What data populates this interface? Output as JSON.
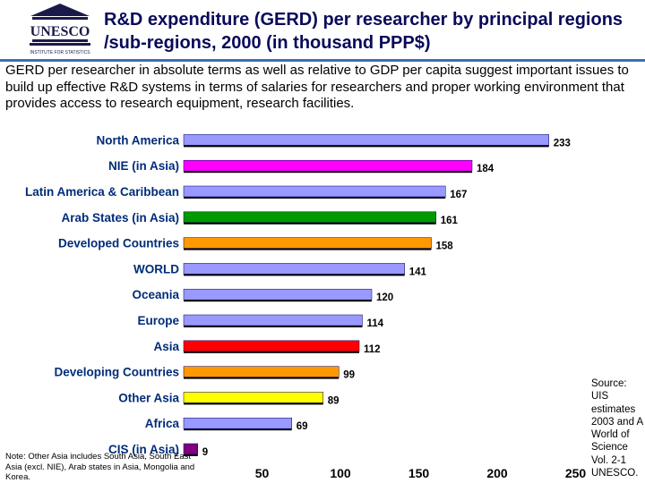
{
  "header": {
    "logo_text": "UNESCO",
    "logo_subtext": "INSTITUTE FOR STATISTICS",
    "title": "R&D expenditure (GERD) per researcher by principal regions /sub-regions, 2000 (in thousand PPP$)"
  },
  "intro": "GERD per researcher in absolute terms as well as relative to GDP per capita suggest important issues to build up effective R&D systems in terms of salaries for researchers and proper working environment that provides access to research equipment, research facilities.",
  "chart_data": {
    "type": "bar",
    "orientation": "horizontal",
    "categories": [
      "North America",
      "NIE (in Asia)",
      "Latin America & Caribbean",
      "Arab States (in Asia)",
      "Developed Countries",
      "WORLD",
      "Oceania",
      "Europe",
      "Asia",
      "Developing Countries",
      "Other Asia",
      "Africa",
      "CIS (in Asia)"
    ],
    "values": [
      233,
      184,
      167,
      161,
      158,
      141,
      120,
      114,
      112,
      99,
      89,
      69,
      9
    ],
    "colors": [
      "#9999ff",
      "#ff00ff",
      "#9999ff",
      "#009900",
      "#ff9900",
      "#9999ff",
      "#9999ff",
      "#9999ff",
      "#ff0000",
      "#ff9900",
      "#ffff00",
      "#9999ff",
      "#800080"
    ],
    "xticks": [
      50,
      100,
      150,
      200,
      250
    ],
    "xlim": [
      0,
      250
    ],
    "title": "R&D expenditure (GERD) per researcher by principal regions /sub-regions, 2000 (in thousand PPP$)",
    "xlabel": "",
    "ylabel": ""
  },
  "note": "Note: Other Asia includes South Asia, South East Asia (excl. NIE), Arab states in Asia, Mongolia and Korea.",
  "source": "Source: UIS estimates 2003 and A World of Science Vol. 2-1 UNESCO."
}
